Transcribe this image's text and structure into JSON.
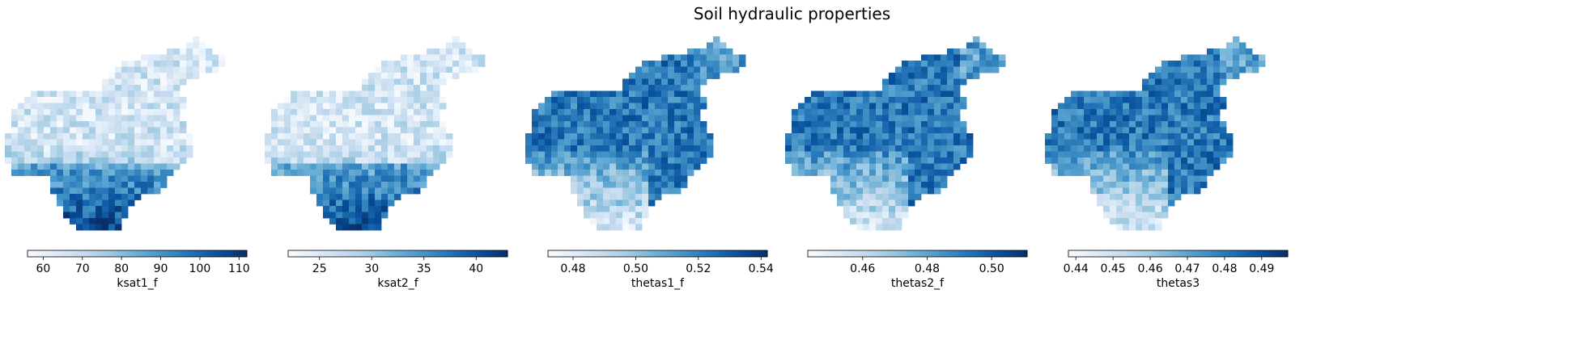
{
  "figure": {
    "title": "Soil hydraulic properties"
  },
  "chart_data": [
    {
      "type": "heatmap",
      "label": "ksat1_f",
      "colormap": "Blues",
      "vmin": 56,
      "vmax": 112,
      "ticks": [
        60,
        70,
        80,
        90,
        100,
        110
      ],
      "tick_labels": [
        "60",
        "70",
        "80",
        "90",
        "100",
        "110"
      ],
      "pattern": "north_high",
      "seed": 11
    },
    {
      "type": "heatmap",
      "label": "ksat2_f",
      "colormap": "Blues",
      "vmin": 22,
      "vmax": 43,
      "ticks": [
        25,
        30,
        35,
        40
      ],
      "tick_labels": [
        "25",
        "30",
        "35",
        "40"
      ],
      "pattern": "north_high",
      "seed": 23
    },
    {
      "type": "heatmap",
      "label": "thetas1_f",
      "colormap": "Blues",
      "vmin": 0.472,
      "vmax": 0.542,
      "ticks": [
        0.48,
        0.5,
        0.52,
        0.54
      ],
      "tick_labels": [
        "0.48",
        "0.50",
        "0.52",
        "0.54"
      ],
      "pattern": "south_low",
      "seed": 37
    },
    {
      "type": "heatmap",
      "label": "thetas2_f",
      "colormap": "Blues",
      "vmin": 0.443,
      "vmax": 0.511,
      "ticks": [
        0.46,
        0.48,
        0.5
      ],
      "tick_labels": [
        "0.46",
        "0.48",
        "0.50"
      ],
      "pattern": "south_low",
      "seed": 41
    },
    {
      "type": "heatmap",
      "label": "thetas3",
      "colormap": "Blues",
      "vmin": 0.438,
      "vmax": 0.497,
      "ticks": [
        0.44,
        0.45,
        0.46,
        0.47,
        0.48,
        0.49
      ],
      "tick_labels": [
        "0.44",
        "0.45",
        "0.46",
        "0.47",
        "0.48",
        "0.49"
      ],
      "pattern": "south_low",
      "seed": 53
    }
  ]
}
